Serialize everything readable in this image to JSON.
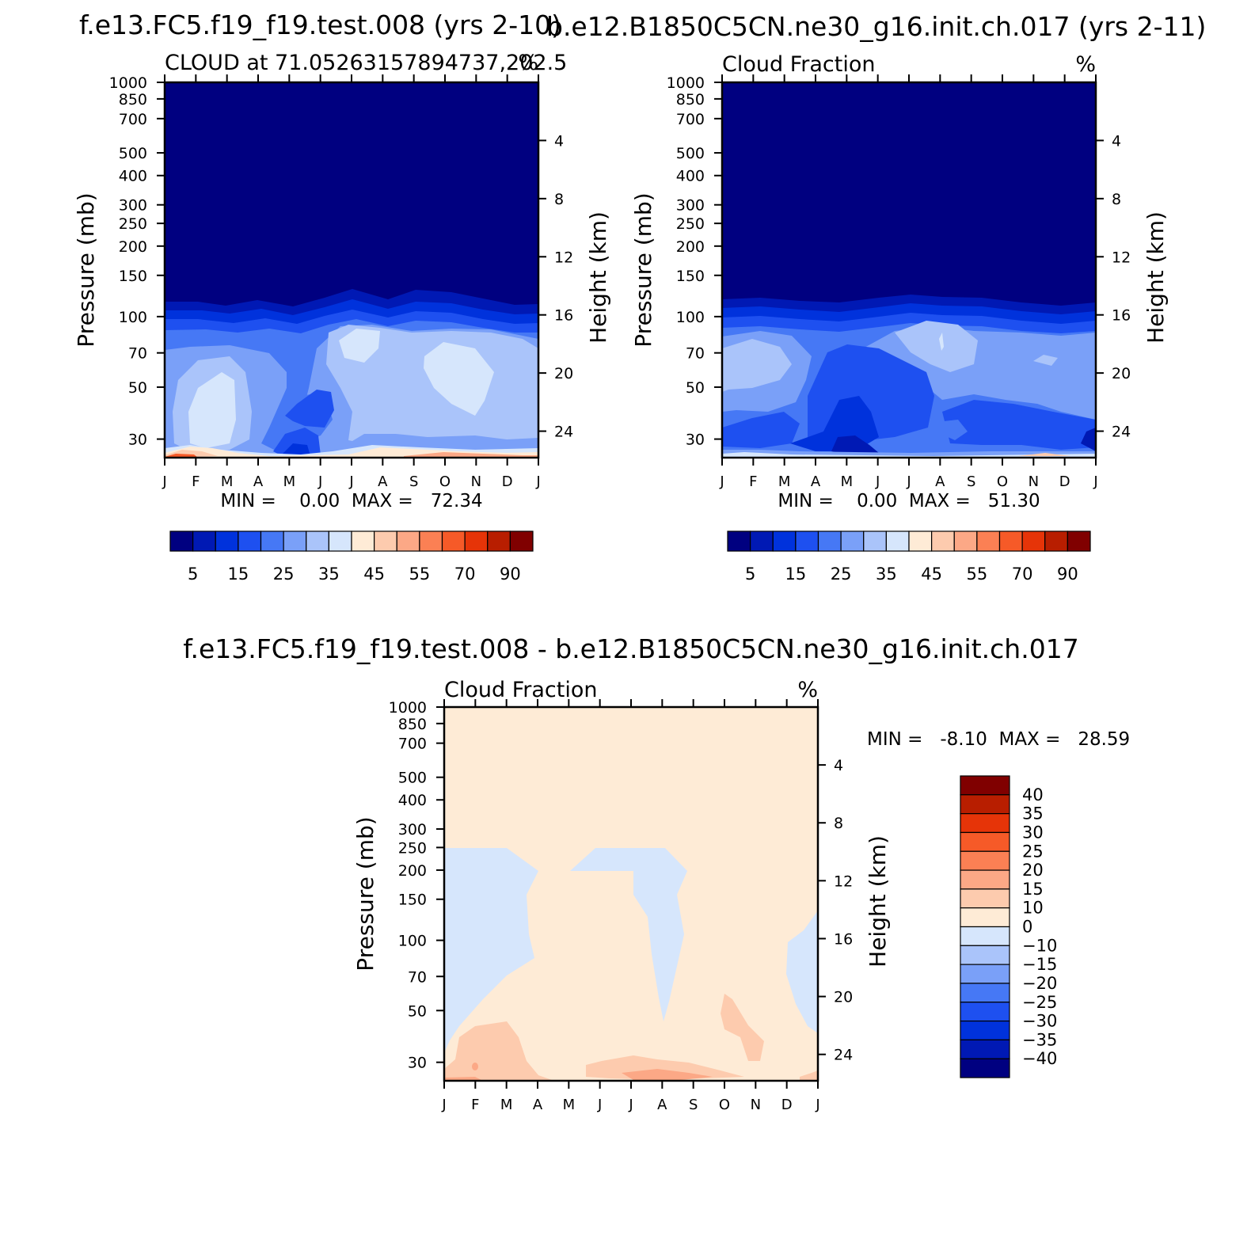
{
  "header": {
    "title_left": "f.e13.FC5.f19_f19.test.008 (yrs 2-10)",
    "title_right": "b.e12.B1850C5CN.ne30_g16.init.ch.017 (yrs 2-11)",
    "title_bottom": "f.e13.FC5.f19_f19.test.008 - b.e12.B1850C5CN.ne30_g16.init.ch.017"
  },
  "colors": {
    "pos_scale": [
      "#000080",
      "#0019b4",
      "#0032dc",
      "#1e50f0",
      "#4678f5",
      "#7aa0f8",
      "#aac4fa",
      "#d6e6fc",
      "#feebd6",
      "#fdcbae",
      "#fca886",
      "#fb8054",
      "#f65a28",
      "#e63408",
      "#b81e00",
      "#800000"
    ],
    "diff_scale": [
      "#000080",
      "#0019b4",
      "#0032dc",
      "#1e50f0",
      "#4678f5",
      "#7aa0f8",
      "#aac4fa",
      "#d6e6fc",
      "#feebd6",
      "#fdcbae",
      "#fca886",
      "#fb8054",
      "#f65a28",
      "#e63408",
      "#b81e00",
      "#800000"
    ]
  },
  "chart_data": [
    {
      "type": "heatmap",
      "title": "CLOUD at 71.05263157894737,202.5",
      "units": "%",
      "xlabel": "",
      "ylabel": "Pressure (mb)",
      "right_ylabel": "Height (km)",
      "x_ticks": [
        "J",
        "F",
        "M",
        "A",
        "M",
        "J",
        "J",
        "A",
        "S",
        "O",
        "N",
        "D",
        "J"
      ],
      "y_ticks": [
        30,
        50,
        70,
        100,
        150,
        200,
        250,
        300,
        400,
        500,
        700,
        850,
        1000
      ],
      "right_ticks": [
        24,
        20,
        16,
        12,
        8,
        4
      ],
      "ylim": [
        1000,
        25
      ],
      "stats": "MIN =    0.00  MAX =   72.34",
      "min": 0.0,
      "max": 72.34,
      "colorbar_labels": [
        "5",
        "15",
        "25",
        "35",
        "45",
        "55",
        "70",
        "90"
      ],
      "colorbar_levels": [
        5,
        10,
        15,
        20,
        25,
        30,
        35,
        40,
        45,
        50,
        55,
        60,
        70,
        80,
        90
      ]
    },
    {
      "type": "heatmap",
      "title": "Cloud Fraction",
      "units": "%",
      "xlabel": "",
      "ylabel": "Pressure (mb)",
      "right_ylabel": "Height (km)",
      "x_ticks": [
        "J",
        "F",
        "M",
        "A",
        "M",
        "J",
        "J",
        "A",
        "S",
        "O",
        "N",
        "D",
        "J"
      ],
      "y_ticks": [
        30,
        50,
        70,
        100,
        150,
        200,
        250,
        300,
        400,
        500,
        700,
        850,
        1000
      ],
      "right_ticks": [
        24,
        20,
        16,
        12,
        8,
        4
      ],
      "ylim": [
        1000,
        25
      ],
      "stats": "MIN =    0.00  MAX =   51.30",
      "min": 0.0,
      "max": 51.3,
      "colorbar_labels": [
        "5",
        "15",
        "25",
        "35",
        "45",
        "55",
        "70",
        "90"
      ],
      "colorbar_levels": [
        5,
        10,
        15,
        20,
        25,
        30,
        35,
        40,
        45,
        50,
        55,
        60,
        70,
        80,
        90
      ]
    },
    {
      "type": "heatmap",
      "title": "Cloud Fraction",
      "units": "%",
      "xlabel": "",
      "ylabel": "Pressure (mb)",
      "right_ylabel": "Height (km)",
      "x_ticks": [
        "J",
        "F",
        "M",
        "A",
        "M",
        "J",
        "J",
        "A",
        "S",
        "O",
        "N",
        "D",
        "J"
      ],
      "y_ticks": [
        30,
        50,
        70,
        100,
        150,
        200,
        250,
        300,
        400,
        500,
        700,
        850,
        1000
      ],
      "right_ticks": [
        24,
        20,
        16,
        12,
        8,
        4
      ],
      "ylim": [
        1000,
        25
      ],
      "stats": "MIN =   -8.10  MAX =   28.59",
      "min": -8.1,
      "max": 28.59,
      "colorbar_labels": [
        "40",
        "35",
        "30",
        "25",
        "20",
        "15",
        "10",
        "0",
        "-10",
        "-15",
        "-20",
        "-25",
        "-30",
        "-35",
        "-40"
      ],
      "colorbar_levels": [
        -40,
        -35,
        -30,
        -25,
        -20,
        -15,
        -10,
        0,
        10,
        15,
        20,
        25,
        30,
        35,
        40
      ]
    }
  ]
}
